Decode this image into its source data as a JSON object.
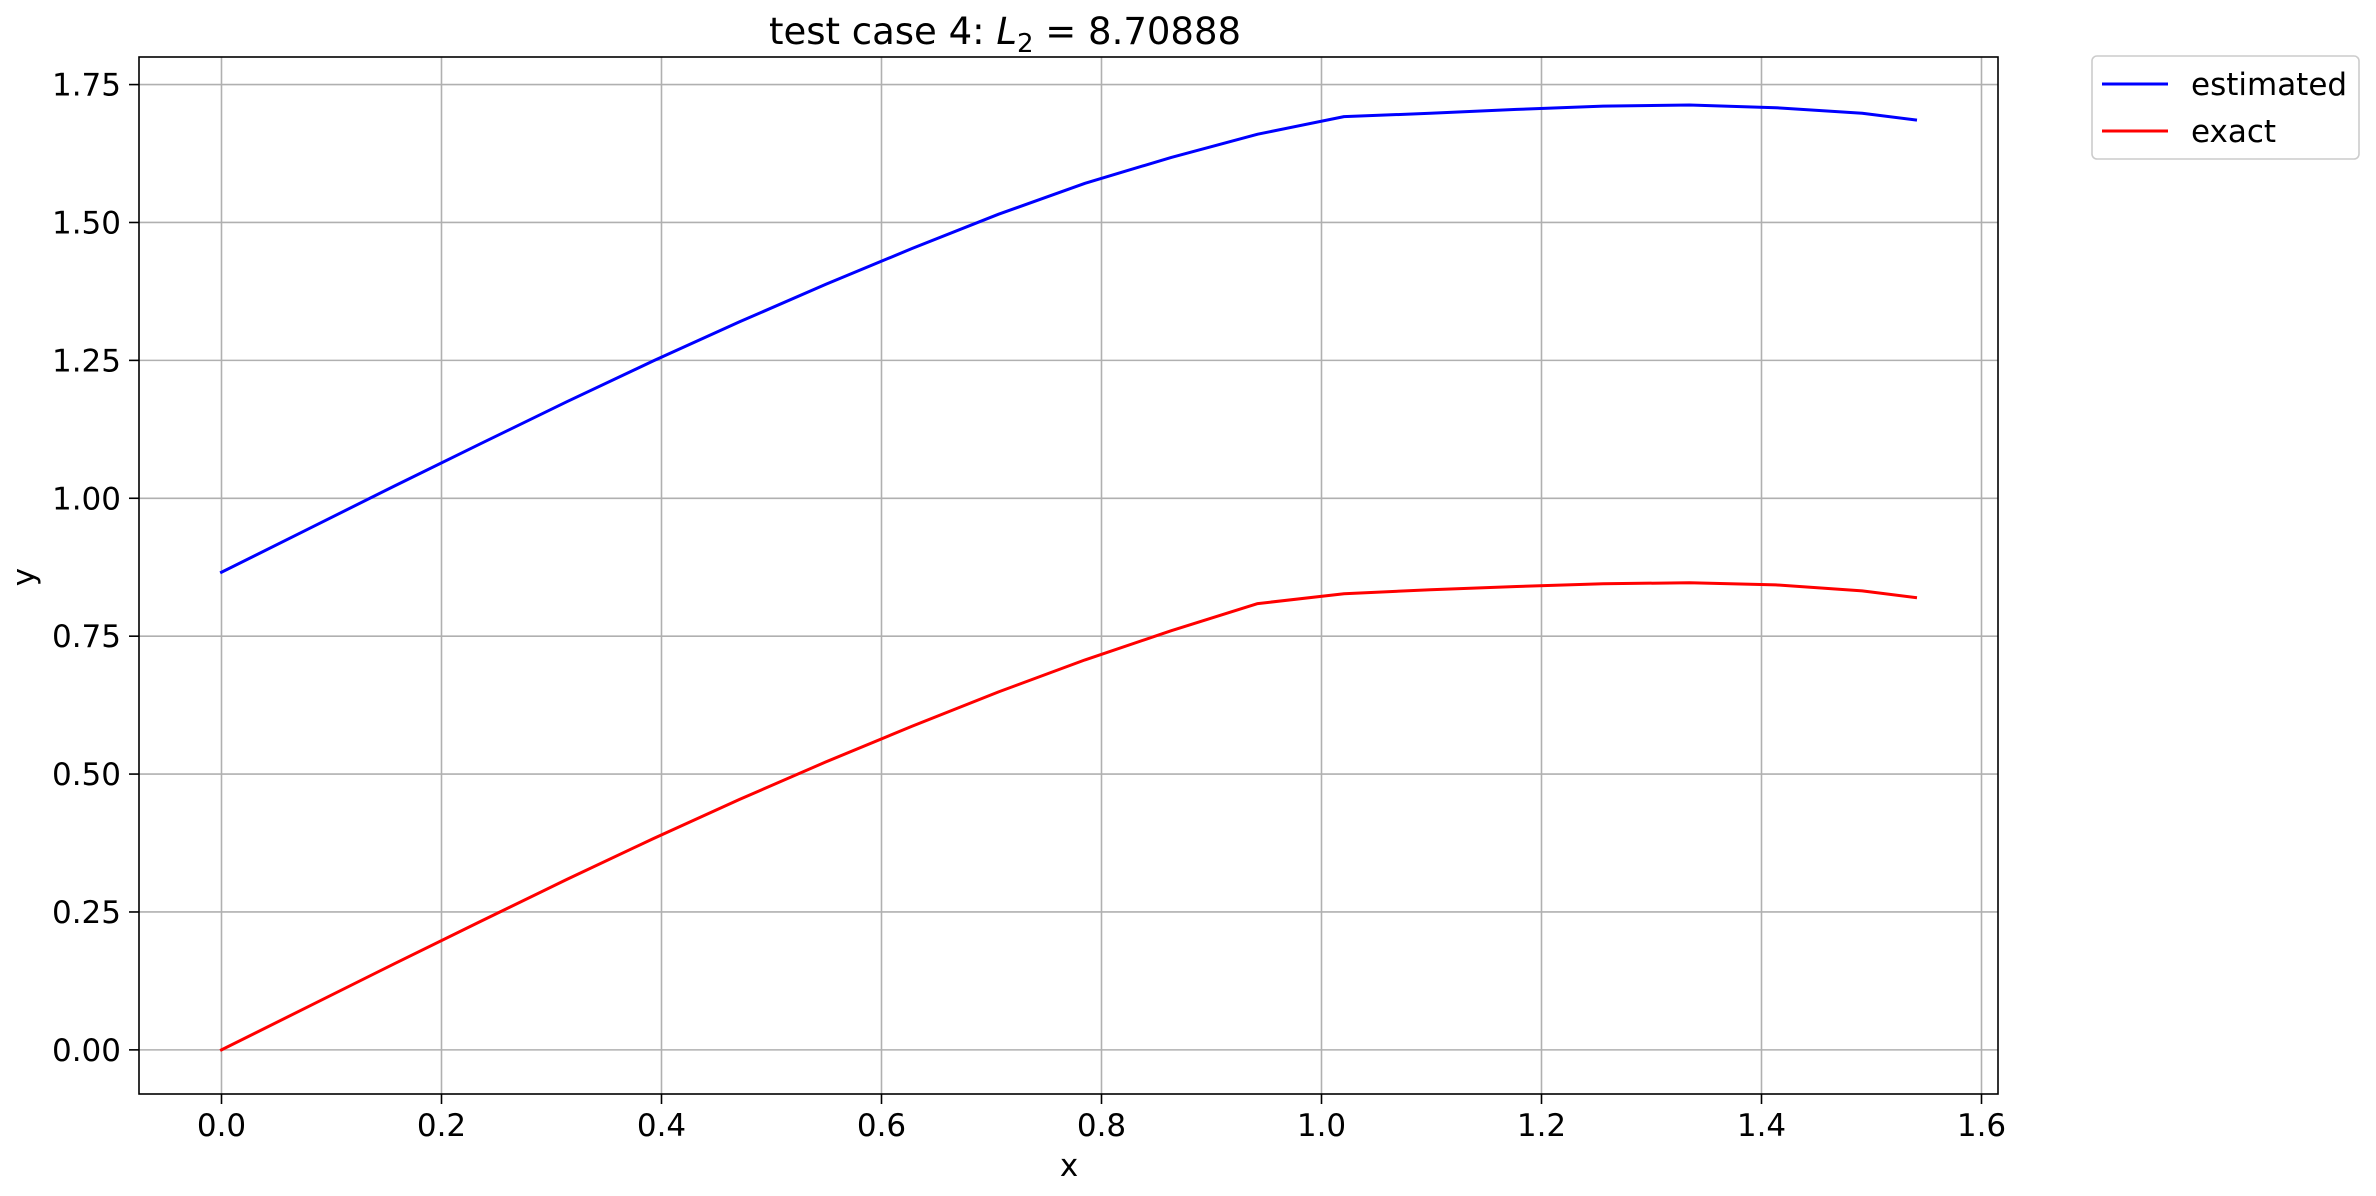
{
  "chart_data": {
    "type": "line",
    "title_prefix": "test case 4: ",
    "title_symbol": "L",
    "title_subscript": "2",
    "title_suffix": " = 8.70888",
    "xlabel": "x",
    "ylabel": "y",
    "xlim": [
      -0.075,
      1.615
    ],
    "ylim": [
      -0.08,
      1.8
    ],
    "xticks": [
      0.0,
      0.2,
      0.4,
      0.6,
      0.8,
      1.0,
      1.2,
      1.4,
      1.6
    ],
    "xtick_labels": [
      "0.0",
      "0.2",
      "0.4",
      "0.6",
      "0.8",
      "1.0",
      "1.2",
      "1.4",
      "1.6"
    ],
    "yticks": [
      0.0,
      0.25,
      0.5,
      0.75,
      1.0,
      1.25,
      1.5,
      1.75
    ],
    "ytick_labels": [
      "0.00",
      "0.25",
      "0.50",
      "0.75",
      "1.00",
      "1.25",
      "1.50",
      "1.75"
    ],
    "grid": true,
    "legend_position": "outside-top-right",
    "x": [
      0.0,
      0.0785,
      0.157,
      0.2355,
      0.314,
      0.3925,
      0.471,
      0.5495,
      0.628,
      0.7065,
      0.785,
      0.8635,
      0.942,
      1.0205,
      1.099,
      1.1775,
      1.256,
      1.3345,
      1.413,
      1.4915,
      1.54
    ],
    "series": [
      {
        "name": "estimated",
        "color": "#0000ff",
        "values": [
          0.866,
          0.944,
          1.022,
          1.099,
          1.175,
          1.249,
          1.32,
          1.388,
          1.453,
          1.515,
          1.571,
          1.618,
          1.66,
          1.692,
          1.698,
          1.705,
          1.711,
          1.713,
          1.708,
          1.698,
          1.686
        ]
      },
      {
        "name": "exact",
        "color": "#ff0000",
        "values": [
          0.0,
          0.078,
          0.156,
          0.233,
          0.309,
          0.383,
          0.454,
          0.522,
          0.587,
          0.649,
          0.707,
          0.76,
          0.809,
          0.827,
          0.834,
          0.84,
          0.845,
          0.847,
          0.843,
          0.832,
          0.82
        ]
      }
    ]
  }
}
